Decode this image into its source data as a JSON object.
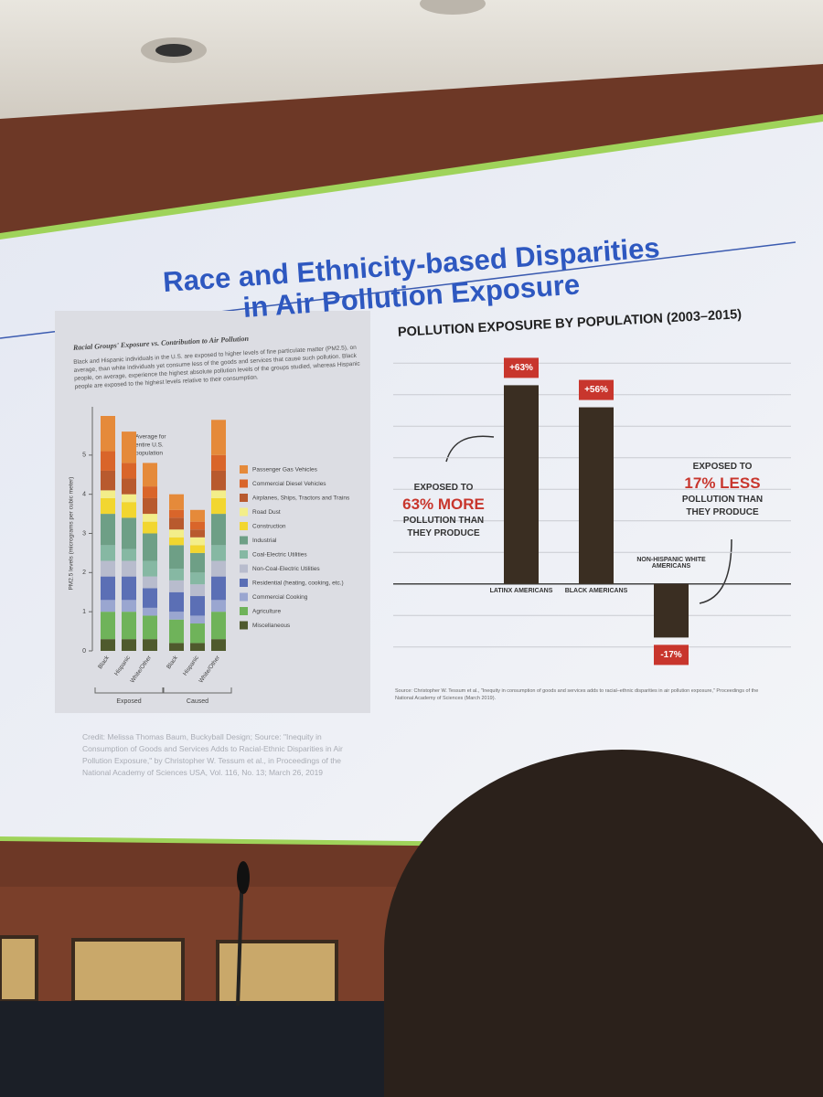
{
  "slide": {
    "title_lines": [
      "Race and Ethnicity-based Disparities",
      "in Air Pollution Exposure"
    ],
    "credit": "Credit: Melissa Thomas Baum, Buckyball Design; Source: \"Inequity in Consumption of Goods and Services Adds to Racial-Ethnic Disparities in Air Pollution Exposure,\" by Christopher W. Tessum et al., in Proceedings of the National Academy of Sciences USA, Vol. 116, No. 13; March 26, 2019"
  },
  "chart_data": [
    {
      "type": "stacked_bar",
      "title": "Racial Groups' Exposure vs. Contribution to Air Pollution",
      "description": "Black and Hispanic individuals in the U.S. are exposed to higher levels of fine particulate matter (PM2.5), on average, than white individuals yet consume less of the goods and services that cause such pollution. Black people, on average, experience the highest absolute pollution levels of the groups studied, whereas Hispanic people are exposed to the highest levels relative to their consumption.",
      "y_label": "PM2.5 levels (micrograms per cubic meter)",
      "annotation_lines": [
        "Average for",
        "entire U.S.",
        "population"
      ],
      "groups": [
        {
          "name": "Exposed",
          "categories": [
            "Black",
            "Hispanic",
            "White/Other"
          ]
        },
        {
          "name": "Caused",
          "categories": [
            "Black",
            "Hispanic",
            "White/Other"
          ]
        }
      ],
      "ylim": [
        0,
        6
      ],
      "yticks": [
        0,
        1,
        2,
        3,
        4,
        5
      ],
      "series": [
        {
          "name": "Miscellaneous",
          "color": "#4f5a2d",
          "values": [
            0.3,
            0.3,
            0.3,
            0.2,
            0.2,
            0.3
          ]
        },
        {
          "name": "Agriculture",
          "color": "#6fb35a",
          "values": [
            0.7,
            0.7,
            0.6,
            0.6,
            0.5,
            0.7
          ]
        },
        {
          "name": "Commercial Cooking",
          "color": "#9aa6d0",
          "values": [
            0.3,
            0.3,
            0.2,
            0.2,
            0.2,
            0.3
          ]
        },
        {
          "name": "Residential (heating, cooking, etc.)",
          "color": "#5b6fb5",
          "values": [
            0.6,
            0.6,
            0.5,
            0.5,
            0.5,
            0.6
          ]
        },
        {
          "name": "Non-Coal-Electric Utilities",
          "color": "#b8bccd",
          "values": [
            0.4,
            0.4,
            0.3,
            0.3,
            0.3,
            0.4
          ]
        },
        {
          "name": "Coal-Electric Utilities",
          "color": "#86b8a3",
          "values": [
            0.4,
            0.3,
            0.4,
            0.3,
            0.3,
            0.4
          ]
        },
        {
          "name": "Industrial",
          "color": "#6e9f86",
          "values": [
            0.8,
            0.8,
            0.7,
            0.6,
            0.5,
            0.8
          ]
        },
        {
          "name": "Construction",
          "color": "#f2d630",
          "values": [
            0.4,
            0.4,
            0.3,
            0.2,
            0.2,
            0.4
          ]
        },
        {
          "name": "Road Dust",
          "color": "#f3ee8a",
          "values": [
            0.2,
            0.2,
            0.2,
            0.2,
            0.2,
            0.2
          ]
        },
        {
          "name": "Airplanes, Ships, Tractors and Trains",
          "color": "#b85a2e",
          "values": [
            0.5,
            0.4,
            0.4,
            0.3,
            0.2,
            0.5
          ]
        },
        {
          "name": "Commercial Diesel Vehicles",
          "color": "#d9652a",
          "values": [
            0.5,
            0.4,
            0.3,
            0.2,
            0.2,
            0.4
          ]
        },
        {
          "name": "Passenger Gas Vehicles",
          "color": "#e58a3a",
          "values": [
            0.9,
            0.8,
            0.6,
            0.4,
            0.3,
            0.9
          ]
        }
      ]
    },
    {
      "type": "bar",
      "title": "POLLUTION EXPOSURE BY POPULATION (2003–2015)",
      "categories": [
        "LATINX AMERICANS",
        "BLACK AMERICANS",
        "NON-HISPANIC WHITE AMERICANS"
      ],
      "values": [
        63,
        56,
        -17
      ],
      "value_labels": [
        "+63%",
        "+56%",
        "-17%"
      ],
      "color": "#3a2e22",
      "label_color": "#c8362d",
      "ylim": [
        -25,
        75
      ],
      "yticks": [
        -20,
        -10,
        0,
        10,
        20,
        30,
        40,
        50,
        60,
        70
      ],
      "grid": true,
      "tick_labels": false,
      "annotations": [
        {
          "lines": [
            "EXPOSED TO",
            "63% MORE",
            "POLLUTION THAN",
            "THEY PRODUCE"
          ]
        },
        {
          "lines": [
            "EXPOSED TO",
            "17% LESS",
            "POLLUTION THAN",
            "THEY PRODUCE"
          ]
        }
      ],
      "source": "Source: Christopher W. Tessum et al., \"Inequity in consumption of goods and services adds to racial–ethnic disparities in air pollution exposure,\" Proceedings of the National Academy of Sciences (March 2019)."
    }
  ]
}
